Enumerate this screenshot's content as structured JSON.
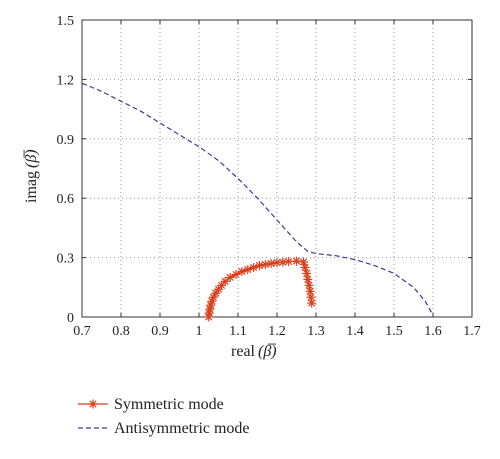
{
  "chart_data": {
    "type": "line",
    "xlabel": "real",
    "ylabel": "imag",
    "xlim": [
      0.7,
      1.7
    ],
    "ylim": [
      0,
      1.5
    ],
    "grid": true,
    "legend_position": "bottom-left-outside",
    "x_ticks": [
      "0.7",
      "0.8",
      "0.9",
      "1",
      "1.1",
      "1.2",
      "1.3",
      "1.4",
      "1.5",
      "1.6",
      "1.7"
    ],
    "y_ticks": [
      "0",
      "0.3",
      "0.6",
      "0.9",
      "1.2",
      "1.5"
    ],
    "series": [
      {
        "name": "Symmetric mode",
        "color": "#d9411e",
        "line_style": "solid",
        "marker": "asterisk",
        "points": [
          [
            1.025,
            0.0
          ],
          [
            1.026,
            0.02
          ],
          [
            1.028,
            0.04
          ],
          [
            1.03,
            0.06
          ],
          [
            1.033,
            0.08
          ],
          [
            1.037,
            0.1
          ],
          [
            1.043,
            0.12
          ],
          [
            1.05,
            0.14
          ],
          [
            1.058,
            0.16
          ],
          [
            1.067,
            0.18
          ],
          [
            1.08,
            0.2
          ],
          [
            1.095,
            0.215
          ],
          [
            1.11,
            0.23
          ],
          [
            1.125,
            0.24
          ],
          [
            1.14,
            0.25
          ],
          [
            1.155,
            0.26
          ],
          [
            1.17,
            0.265
          ],
          [
            1.185,
            0.27
          ],
          [
            1.2,
            0.275
          ],
          [
            1.215,
            0.277
          ],
          [
            1.23,
            0.28
          ],
          [
            1.25,
            0.282
          ],
          [
            1.268,
            0.278
          ],
          [
            1.272,
            0.25
          ],
          [
            1.276,
            0.22
          ],
          [
            1.279,
            0.19
          ],
          [
            1.282,
            0.16
          ],
          [
            1.285,
            0.13
          ],
          [
            1.287,
            0.1
          ],
          [
            1.289,
            0.07
          ]
        ]
      },
      {
        "name": "Antisymmetric mode",
        "color": "#3a3a9a",
        "line_style": "dashed",
        "marker": "none",
        "points": [
          [
            0.7,
            1.18
          ],
          [
            0.75,
            1.14
          ],
          [
            0.8,
            1.09
          ],
          [
            0.85,
            1.04
          ],
          [
            0.9,
            0.98
          ],
          [
            0.95,
            0.92
          ],
          [
            1.0,
            0.86
          ],
          [
            1.05,
            0.79
          ],
          [
            1.1,
            0.7
          ],
          [
            1.15,
            0.6
          ],
          [
            1.2,
            0.49
          ],
          [
            1.25,
            0.38
          ],
          [
            1.28,
            0.33
          ],
          [
            1.3,
            0.32
          ],
          [
            1.35,
            0.31
          ],
          [
            1.4,
            0.29
          ],
          [
            1.45,
            0.26
          ],
          [
            1.5,
            0.22
          ],
          [
            1.55,
            0.15
          ],
          [
            1.58,
            0.08
          ],
          [
            1.6,
            0.01
          ]
        ]
      }
    ]
  }
}
